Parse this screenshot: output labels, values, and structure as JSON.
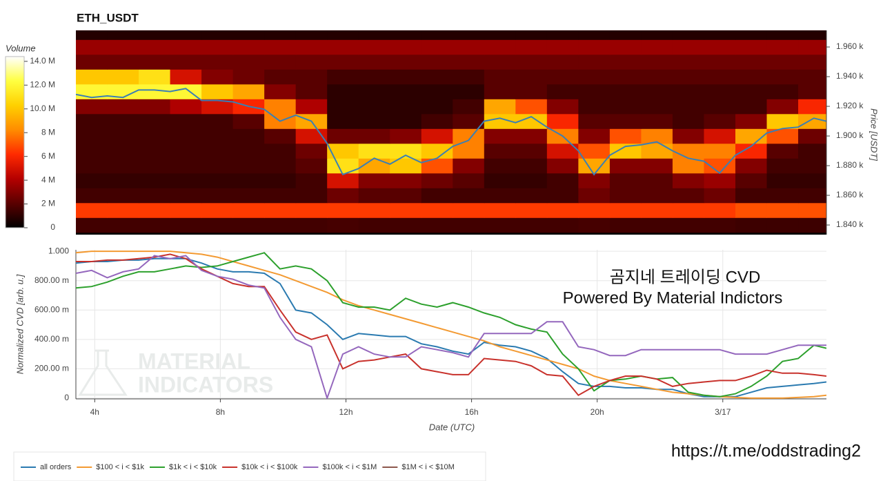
{
  "chart_data": [
    {
      "type": "heatmap",
      "title": "ETH_USDT",
      "ylabel": "Price [USDT]",
      "colorbar_label": "Volume",
      "x": [
        3.9,
        4.9,
        5.9,
        6.9,
        7.9,
        8.9,
        9.9,
        10.9,
        11.9,
        12.9,
        13.9,
        14.9,
        15.9,
        16.9,
        17.9,
        18.9,
        19.9,
        20.9,
        21.9,
        22.9,
        23.9,
        24.9,
        25.9,
        26.9
      ],
      "y": [
        1840,
        1850,
        1860,
        1870,
        1880,
        1890,
        1900,
        1910,
        1920,
        1930,
        1940,
        1950,
        1960,
        1970
      ],
      "z": [
        [
          1.5,
          1.5,
          1.5,
          1.5,
          1.5,
          1.5,
          1.5,
          1.5,
          1.6,
          1.5,
          1.5,
          1.5,
          1.5,
          1.5,
          1.5,
          1.5,
          1.6,
          1.5,
          1.5,
          1.5,
          1.5,
          1.4,
          1.4,
          1.4
        ],
        [
          6.5,
          6.5,
          6.5,
          6.5,
          6.5,
          6.5,
          6.5,
          6.5,
          6.5,
          6.5,
          6.5,
          6.5,
          6.5,
          6.5,
          6.5,
          6.5,
          6.5,
          6.5,
          6.5,
          6.5,
          6.5,
          7,
          7,
          7
        ],
        [
          1.5,
          1.5,
          1.5,
          1.5,
          1.5,
          1.5,
          1.5,
          1.5,
          2.5,
          2,
          2,
          1.5,
          1.5,
          1.5,
          1.5,
          1.5,
          2.5,
          2,
          2,
          2,
          2.5,
          1.5,
          1.5,
          1.5
        ],
        [
          1.2,
          1.2,
          1.2,
          1.2,
          1.2,
          1.2,
          1.2,
          1.5,
          5,
          3,
          3,
          2.5,
          2,
          1.2,
          1.2,
          1.5,
          3,
          2,
          2,
          3,
          3.5,
          2,
          1.2,
          1.2
        ],
        [
          1.5,
          1.5,
          1.5,
          1.5,
          1.5,
          1.5,
          1.5,
          2,
          11,
          9,
          10,
          7,
          3,
          1.5,
          1.5,
          3,
          9,
          3,
          3,
          8,
          7,
          3,
          1.5,
          1.5
        ],
        [
          1.5,
          1.5,
          1.5,
          1.5,
          1.5,
          1.5,
          1.5,
          2.5,
          10,
          11,
          11,
          10,
          8,
          2,
          2,
          5,
          7,
          10,
          9,
          8,
          8,
          6,
          2,
          1.5
        ],
        [
          1.5,
          1.5,
          1.5,
          1.5,
          1.5,
          1.5,
          2,
          5,
          2.5,
          2.5,
          3,
          5,
          8,
          3,
          3,
          8,
          3,
          7,
          8,
          3,
          5,
          9,
          7,
          2.5
        ],
        [
          1.5,
          1.5,
          1.5,
          1.5,
          1.5,
          2,
          8,
          9,
          1,
          1,
          1,
          1.5,
          2,
          10,
          10,
          6,
          2,
          2,
          2,
          1.5,
          2,
          3,
          10,
          9
        ],
        [
          3,
          3,
          3,
          4,
          5,
          6,
          8,
          4,
          1,
          1,
          1,
          1,
          1.5,
          9,
          7,
          3,
          1.5,
          1.5,
          1.5,
          1.5,
          1.5,
          1.5,
          3,
          6
        ],
        [
          12,
          12,
          12,
          12,
          10,
          9,
          3,
          2,
          1,
          1,
          1,
          1,
          1,
          2,
          2,
          1.5,
          1.5,
          1.5,
          1.5,
          1.5,
          1.5,
          1.5,
          1.5,
          2
        ],
        [
          10,
          10,
          11,
          5,
          3,
          2.5,
          2,
          2,
          1.5,
          1.5,
          1.5,
          1.5,
          1.5,
          2,
          2,
          2,
          2,
          2,
          2,
          2,
          2,
          2,
          2,
          2
        ],
        [
          2.5,
          2.5,
          2.5,
          2.5,
          2.5,
          2.5,
          2.5,
          2.5,
          2.5,
          2.5,
          2.5,
          2.5,
          2.5,
          2.5,
          2.5,
          2.5,
          2.5,
          2.5,
          2.5,
          2.5,
          2.5,
          2.5,
          2.5,
          2.5
        ],
        [
          3.5,
          3.5,
          3.5,
          3.5,
          3.5,
          3.5,
          3.5,
          3.5,
          3.5,
          3.5,
          3.5,
          3.5,
          3.5,
          3.5,
          3.5,
          3.5,
          3.5,
          3.5,
          3.5,
          3.5,
          3.5,
          3.5,
          3.5,
          3.5
        ],
        [
          0.8,
          0.8,
          0.8,
          0.8,
          0.8,
          0.8,
          0.8,
          0.8,
          0.8,
          0.8,
          0.8,
          0.8,
          0.8,
          0.8,
          0.8,
          0.8,
          0.8,
          0.8,
          0.8,
          0.8,
          0.8,
          0.8,
          0.8,
          0.8
        ]
      ],
      "colormap": [
        "#000000",
        "#5a0000",
        "#b40000",
        "#ff2a00",
        "#ff8c00",
        "#ffd000",
        "#ffff40",
        "#ffffff"
      ],
      "zlim": [
        0,
        14.4
      ],
      "zticks": [
        0,
        {
          "value": 2,
          "label": "2 M"
        },
        {
          "value": 4,
          "label": "4 M"
        },
        {
          "value": 6,
          "label": "6 M"
        },
        {
          "value": 8,
          "label": "8 M"
        },
        {
          "value": 10,
          "label": "10.0 M"
        },
        {
          "value": 12,
          "label": "12.0 M"
        },
        {
          "value": 14,
          "label": "14.0 M"
        }
      ],
      "price_line": {
        "color": "#3a7fb4",
        "x": [
          3.4,
          3.9,
          4.4,
          4.9,
          5.4,
          5.9,
          6.4,
          6.9,
          7.4,
          7.9,
          8.4,
          8.9,
          9.4,
          9.9,
          10.4,
          10.9,
          11.4,
          11.9,
          12.4,
          12.9,
          13.4,
          13.9,
          14.4,
          14.9,
          15.4,
          15.9,
          16.4,
          16.9,
          17.4,
          17.9,
          18.4,
          18.9,
          19.4,
          19.9,
          20.4,
          20.9,
          21.4,
          21.9,
          22.4,
          22.9,
          23.4,
          23.9,
          24.4,
          24.9,
          25.4,
          25.9,
          26.4,
          26.9,
          27.3
        ],
        "values": [
          1928,
          1926,
          1927,
          1926,
          1931,
          1931,
          1930,
          1932,
          1924,
          1924,
          1923,
          1920,
          1918,
          1910,
          1914,
          1910,
          1895,
          1874,
          1878,
          1885,
          1881,
          1887,
          1882,
          1885,
          1893,
          1897,
          1910,
          1912,
          1909,
          1913,
          1906,
          1900,
          1890,
          1874,
          1887,
          1893,
          1894,
          1896,
          1890,
          1885,
          1883,
          1875,
          1887,
          1893,
          1902,
          1905,
          1906,
          1912,
          1910
        ]
      },
      "xlim": [
        3.4,
        27.3
      ],
      "ylim": [
        1833.5,
        1971.2
      ],
      "yticks": [
        {
          "value": 1840,
          "label": "1.840 k"
        },
        {
          "value": 1860,
          "label": "1.860 k"
        },
        {
          "value": 1880,
          "label": "1.880 k"
        },
        {
          "value": 1900,
          "label": "1.900 k"
        },
        {
          "value": 1920,
          "label": "1.920 k"
        },
        {
          "value": 1940,
          "label": "1.940 k"
        },
        {
          "value": 1960,
          "label": "1.960 k"
        }
      ]
    },
    {
      "type": "line",
      "xlabel": "Date (UTC)",
      "ylabel": "Normalized CVD [arb. u.]",
      "grid": true,
      "annotations": [
        "곰지네 트레이딩 CVD",
        "Powered By Material Indictors"
      ],
      "watermark": [
        "MATERIAL",
        "INDICATORS"
      ],
      "x": [
        3.4,
        3.9,
        4.4,
        4.9,
        5.4,
        5.9,
        6.4,
        6.9,
        7.4,
        7.9,
        8.4,
        8.9,
        9.4,
        9.9,
        10.4,
        10.9,
        11.4,
        11.9,
        12.4,
        12.9,
        13.4,
        13.9,
        14.4,
        14.9,
        15.4,
        15.9,
        16.4,
        16.9,
        17.4,
        17.9,
        18.4,
        18.9,
        19.4,
        19.9,
        20.4,
        20.9,
        21.4,
        21.9,
        22.4,
        22.9,
        23.4,
        23.9,
        24.4,
        24.9,
        25.4,
        25.9,
        26.4,
        26.9,
        27.3
      ],
      "series": [
        {
          "name": "all orders",
          "color": "#2a7ab0",
          "values": [
            0.92,
            0.93,
            0.93,
            0.94,
            0.94,
            0.95,
            0.95,
            0.95,
            0.92,
            0.88,
            0.86,
            0.86,
            0.85,
            0.78,
            0.6,
            0.58,
            0.5,
            0.4,
            0.44,
            0.43,
            0.42,
            0.42,
            0.37,
            0.35,
            0.32,
            0.3,
            0.38,
            0.36,
            0.35,
            0.32,
            0.27,
            0.18,
            0.1,
            0.08,
            0.08,
            0.07,
            0.07,
            0.06,
            0.06,
            0.03,
            0.01,
            0.01,
            0.01,
            0.04,
            0.07,
            0.08,
            0.09,
            0.1,
            0.11
          ]
        },
        {
          "name": "$100 < i < $1k",
          "color": "#f39a32",
          "values": [
            0.99,
            1.0,
            1.0,
            1.0,
            1.0,
            1.0,
            1.0,
            0.99,
            0.98,
            0.96,
            0.93,
            0.9,
            0.87,
            0.84,
            0.8,
            0.76,
            0.72,
            0.67,
            0.63,
            0.6,
            0.57,
            0.54,
            0.51,
            0.48,
            0.45,
            0.42,
            0.39,
            0.35,
            0.32,
            0.29,
            0.26,
            0.23,
            0.2,
            0.15,
            0.12,
            0.1,
            0.08,
            0.06,
            0.04,
            0.03,
            0.02,
            0.01,
            0.005,
            0,
            0,
            0,
            0.005,
            0.01,
            0.02
          ]
        },
        {
          "name": "$1k < i < $10k",
          "color": "#2ca02c",
          "values": [
            0.75,
            0.76,
            0.79,
            0.83,
            0.86,
            0.86,
            0.88,
            0.9,
            0.89,
            0.9,
            0.93,
            0.96,
            0.99,
            0.88,
            0.9,
            0.88,
            0.8,
            0.65,
            0.62,
            0.62,
            0.6,
            0.68,
            0.64,
            0.62,
            0.65,
            0.62,
            0.58,
            0.55,
            0.5,
            0.47,
            0.45,
            0.3,
            0.2,
            0.05,
            0.12,
            0.13,
            0.15,
            0.13,
            0.14,
            0.04,
            0.02,
            0.01,
            0.03,
            0.08,
            0.15,
            0.25,
            0.27,
            0.36,
            0.34
          ]
        },
        {
          "name": "$10k < i < $100k",
          "color": "#c8312b",
          "values": [
            0.93,
            0.93,
            0.94,
            0.94,
            0.95,
            0.96,
            0.98,
            0.95,
            0.88,
            0.83,
            0.78,
            0.76,
            0.76,
            0.6,
            0.45,
            0.4,
            0.43,
            0.2,
            0.25,
            0.26,
            0.28,
            0.3,
            0.2,
            0.18,
            0.16,
            0.16,
            0.27,
            0.26,
            0.25,
            0.22,
            0.16,
            0.15,
            0.02,
            0.08,
            0.12,
            0.15,
            0.15,
            0.13,
            0.08,
            0.1,
            0.11,
            0.12,
            0.12,
            0.15,
            0.19,
            0.17,
            0.17,
            0.16,
            0.15
          ]
        },
        {
          "name": "$100k < i < $1M",
          "color": "#9467bd",
          "values": [
            0.85,
            0.87,
            0.82,
            0.86,
            0.88,
            0.97,
            0.95,
            0.97,
            0.87,
            0.83,
            0.81,
            0.77,
            0.75,
            0.55,
            0.4,
            0.35,
            0.0,
            0.3,
            0.35,
            0.3,
            0.28,
            0.28,
            0.35,
            0.33,
            0.31,
            0.28,
            0.44,
            0.44,
            0.44,
            0.44,
            0.52,
            0.52,
            0.35,
            0.33,
            0.29,
            0.29,
            0.33,
            0.33,
            0.33,
            0.33,
            0.33,
            0.33,
            0.3,
            0.3,
            0.3,
            0.33,
            0.36,
            0.36,
            0.36
          ]
        },
        {
          "name": "$1M < i < $10M",
          "color": "#8c564b",
          "values": [
            null,
            null,
            null,
            null,
            null,
            null,
            null,
            null,
            null,
            null,
            null,
            null,
            null,
            null,
            null,
            null,
            null,
            null,
            null,
            null,
            null,
            null,
            null,
            null,
            null,
            null,
            null,
            null,
            null,
            null,
            null,
            null,
            null,
            null,
            null,
            null,
            null,
            null,
            null,
            null,
            null,
            null,
            null,
            null,
            null,
            null,
            null,
            null,
            null
          ]
        }
      ],
      "xlim": [
        3.4,
        27.3
      ],
      "ylim": [
        -0.005,
        1.01
      ],
      "xticks": [
        {
          "value": 4,
          "label": "4h"
        },
        {
          "value": 8,
          "label": "8h"
        },
        {
          "value": 12,
          "label": "12h"
        },
        {
          "value": 16,
          "label": "16h"
        },
        {
          "value": 20,
          "label": "20h"
        },
        {
          "value": 24,
          "label": "3/17"
        }
      ],
      "yticks": [
        0,
        {
          "value": 0.2,
          "label": "200.00 m"
        },
        {
          "value": 0.4,
          "label": "400.00 m"
        },
        {
          "value": 0.6,
          "label": "600.00 m"
        },
        {
          "value": 0.8,
          "label": "800.00 m"
        },
        {
          "value": 1,
          "label": "1.000"
        }
      ]
    }
  ],
  "url": "https://t.me/oddstrading2"
}
